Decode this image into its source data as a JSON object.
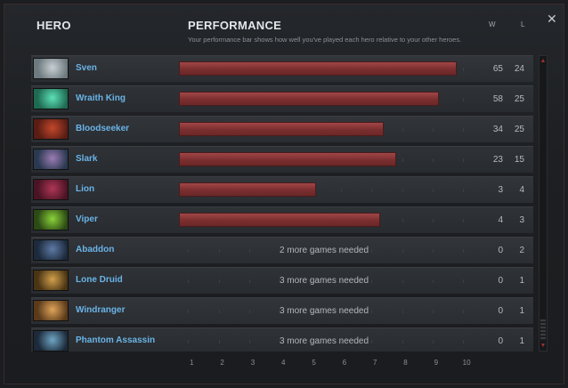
{
  "header": {
    "hero_label": "HERO",
    "performance_label": "PERFORMANCE",
    "description": "Your performance bar shows how well you've played each hero relative to your other heroes.",
    "w_label": "W",
    "l_label": "L"
  },
  "close_label": "✕",
  "rows": [
    {
      "name": "Sven",
      "performance": 9.8,
      "needed": "",
      "w": "65",
      "l": "24",
      "colors": [
        "#6d7a7f",
        "#c9d0d4"
      ]
    },
    {
      "name": "Wraith King",
      "performance": 9.2,
      "needed": "",
      "w": "58",
      "l": "25",
      "colors": [
        "#1f6b52",
        "#5de0b8"
      ]
    },
    {
      "name": "Bloodseeker",
      "performance": 7.4,
      "needed": "",
      "w": "34",
      "l": "25",
      "colors": [
        "#5a1d14",
        "#c2472c"
      ]
    },
    {
      "name": "Slark",
      "performance": 7.8,
      "needed": "",
      "w": "23",
      "l": "15",
      "colors": [
        "#2a3950",
        "#9b7cb4"
      ]
    },
    {
      "name": "Lion",
      "performance": 5.2,
      "needed": "",
      "w": "3",
      "l": "4",
      "colors": [
        "#4a1424",
        "#b03656"
      ]
    },
    {
      "name": "Viper",
      "performance": 7.3,
      "needed": "",
      "w": "4",
      "l": "3",
      "colors": [
        "#2c4a14",
        "#8ad23a"
      ]
    },
    {
      "name": "Abaddon",
      "performance": null,
      "needed": "2 more games needed",
      "w": "0",
      "l": "2",
      "colors": [
        "#1d2a3c",
        "#5d7aa5"
      ]
    },
    {
      "name": "Lone Druid",
      "performance": null,
      "needed": "3 more games needed",
      "w": "0",
      "l": "1",
      "colors": [
        "#4a3414",
        "#d1a04c"
      ]
    },
    {
      "name": "Windranger",
      "performance": null,
      "needed": "3 more games needed",
      "w": "0",
      "l": "1",
      "colors": [
        "#5a3a1a",
        "#e0a45a"
      ]
    },
    {
      "name": "Phantom Assassin",
      "performance": null,
      "needed": "3 more games needed",
      "w": "0",
      "l": "1",
      "colors": [
        "#1c2a3a",
        "#6fa4c4"
      ]
    }
  ],
  "axis_ticks": [
    "1",
    "2",
    "3",
    "4",
    "5",
    "6",
    "7",
    "8",
    "9",
    "10"
  ],
  "axis_range": [
    0.7,
    10.2
  ]
}
